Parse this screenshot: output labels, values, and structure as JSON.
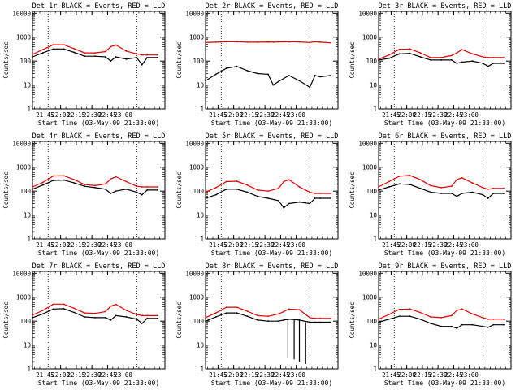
{
  "figure": {
    "colors": {
      "events": "#000000",
      "lld": "#e00000",
      "axes": "#000000",
      "background": "#ffffff"
    }
  },
  "chart_data": [
    {
      "type": "line",
      "title": "Det 1r BLACK = Events, RED = LLD",
      "xlabel": "Start Time (03-May-09 21:33:00)",
      "ylabel": "Counts/sec",
      "x_ticks": [
        "21:45",
        "22:00",
        "22:15",
        "22:30",
        "22:45",
        "23:00"
      ],
      "y_ticks": [
        "1",
        "10",
        "100",
        "1000",
        "10000"
      ],
      "ylim": [
        1,
        12000
      ],
      "yscale": "log",
      "grid": "none",
      "vlines_min": [
        15,
        100
      ],
      "x_min": [
        0,
        10,
        20,
        30,
        40,
        50,
        60,
        70,
        75,
        80,
        90,
        100,
        105,
        110,
        120
      ],
      "series": [
        {
          "name": "Events",
          "color": "#000000",
          "values": [
            150,
            220,
            320,
            320,
            230,
            160,
            160,
            150,
            100,
            150,
            120,
            140,
            70,
            140,
            140
          ]
        },
        {
          "name": "LLD",
          "color": "#e00000",
          "values": [
            190,
            300,
            480,
            480,
            330,
            220,
            220,
            250,
            400,
            470,
            260,
            200,
            180,
            180,
            180
          ]
        }
      ]
    },
    {
      "type": "line",
      "title": "Det 2r BLACK = Events, RED = LLD",
      "xlabel": "Start Time (03-May-09 21:33:00)",
      "ylabel": "Counts/sec",
      "x_ticks": [
        "21:45",
        "22:00",
        "22:15",
        "22:30",
        "22:45",
        "23:00"
      ],
      "y_ticks": [
        "1",
        "10",
        "100",
        "1000",
        "10000"
      ],
      "ylim": [
        1,
        12000
      ],
      "yscale": "log",
      "grid": "none",
      "vlines_min": [
        15,
        100
      ],
      "x_min": [
        0,
        10,
        20,
        30,
        40,
        50,
        60,
        65,
        70,
        80,
        90,
        100,
        105,
        110,
        120
      ],
      "series": [
        {
          "name": "Events",
          "color": "#000000",
          "values": [
            15,
            28,
            50,
            60,
            40,
            30,
            28,
            10,
            14,
            25,
            15,
            8,
            25,
            22,
            25
          ]
        },
        {
          "name": "LLD",
          "color": "#e00000",
          "values": [
            600,
            620,
            640,
            640,
            620,
            620,
            630,
            620,
            630,
            640,
            630,
            600,
            640,
            620,
            580
          ]
        }
      ]
    },
    {
      "type": "line",
      "title": "Det 3r BLACK = Events, RED = LLD",
      "xlabel": "Start Time (03-May-09 21:33:00)",
      "ylabel": "Counts/sec",
      "x_ticks": [
        "21:45",
        "22:00",
        "22:15",
        "22:30",
        "22:45",
        "23:00"
      ],
      "y_ticks": [
        "1",
        "10",
        "100",
        "1000",
        "10000"
      ],
      "ylim": [
        1,
        12000
      ],
      "yscale": "log",
      "grid": "none",
      "vlines_min": [
        15,
        100
      ],
      "x_min": [
        0,
        10,
        20,
        30,
        40,
        50,
        60,
        70,
        75,
        80,
        90,
        100,
        105,
        110,
        120
      ],
      "series": [
        {
          "name": "Events",
          "color": "#000000",
          "values": [
            110,
            130,
            200,
            210,
            150,
            110,
            110,
            110,
            80,
            90,
            100,
            80,
            60,
            80,
            80
          ]
        },
        {
          "name": "LLD",
          "color": "#e00000",
          "values": [
            120,
            180,
            310,
            320,
            220,
            140,
            140,
            170,
            220,
            300,
            200,
            150,
            140,
            140,
            140
          ]
        }
      ]
    },
    {
      "type": "line",
      "title": "Det 4r BLACK = Events, RED = LLD",
      "xlabel": "Start Time (03-May-09 21:33:00)",
      "ylabel": "Counts/sec",
      "x_ticks": [
        "21:45",
        "22:00",
        "22:15",
        "22:30",
        "22:45",
        "23:00"
      ],
      "y_ticks": [
        "1",
        "10",
        "100",
        "1000",
        "10000"
      ],
      "ylim": [
        1,
        12000
      ],
      "yscale": "log",
      "grid": "none",
      "vlines_min": [
        15,
        100
      ],
      "x_min": [
        0,
        10,
        20,
        30,
        40,
        50,
        60,
        70,
        75,
        80,
        90,
        100,
        105,
        110,
        120
      ],
      "series": [
        {
          "name": "Events",
          "color": "#000000",
          "values": [
            120,
            180,
            280,
            290,
            220,
            160,
            140,
            120,
            80,
            100,
            120,
            90,
            70,
            110,
            110
          ]
        },
        {
          "name": "LLD",
          "color": "#e00000",
          "values": [
            150,
            230,
            430,
            440,
            300,
            190,
            170,
            200,
            320,
            400,
            250,
            160,
            150,
            150,
            150
          ]
        }
      ]
    },
    {
      "type": "line",
      "title": "Det 5r BLACK = Events, RED = LLD",
      "xlabel": "Start Time (03-May-09 21:33:00)",
      "ylabel": "Counts/sec",
      "x_ticks": [
        "21:45",
        "22:00",
        "22:15",
        "22:30",
        "22:45",
        "23:00"
      ],
      "y_ticks": [
        "1",
        "10",
        "100",
        "1000",
        "10000"
      ],
      "ylim": [
        1,
        12000
      ],
      "yscale": "log",
      "grid": "none",
      "vlines_min": [
        15,
        100
      ],
      "x_min": [
        0,
        10,
        20,
        30,
        40,
        50,
        60,
        70,
        75,
        80,
        90,
        100,
        105,
        110,
        120
      ],
      "series": [
        {
          "name": "Events",
          "color": "#000000",
          "values": [
            50,
            70,
            120,
            120,
            90,
            60,
            50,
            40,
            20,
            30,
            35,
            30,
            50,
            50,
            50
          ]
        },
        {
          "name": "LLD",
          "color": "#e00000",
          "values": [
            90,
            140,
            250,
            260,
            180,
            110,
            100,
            130,
            250,
            300,
            150,
            90,
            80,
            80,
            80
          ]
        }
      ]
    },
    {
      "type": "line",
      "title": "Det 6r BLACK = Events, RED = LLD",
      "xlabel": "Start Time (03-May-09 21:33:00)",
      "ylabel": "Counts/sec",
      "x_ticks": [
        "21:45",
        "22:00",
        "22:15",
        "22:30",
        "22:45",
        "23:00"
      ],
      "y_ticks": [
        "1",
        "10",
        "100",
        "1000",
        "10000"
      ],
      "ylim": [
        1,
        12000
      ],
      "yscale": "log",
      "grid": "none",
      "vlines_min": [
        15,
        100
      ],
      "x_min": [
        0,
        10,
        20,
        30,
        40,
        50,
        60,
        70,
        75,
        80,
        90,
        100,
        105,
        110,
        120
      ],
      "series": [
        {
          "name": "Events",
          "color": "#000000",
          "values": [
            110,
            150,
            200,
            190,
            130,
            90,
            80,
            80,
            60,
            80,
            90,
            70,
            50,
            80,
            80
          ]
        },
        {
          "name": "LLD",
          "color": "#e00000",
          "values": [
            150,
            250,
            420,
            450,
            300,
            170,
            140,
            160,
            300,
            360,
            220,
            140,
            120,
            130,
            130
          ]
        }
      ]
    },
    {
      "type": "line",
      "title": "Det 7r BLACK = Events, RED = LLD",
      "xlabel": "Start Time (03-May-09 21:33:00)",
      "ylabel": "Counts/sec",
      "x_ticks": [
        "21:45",
        "22:00",
        "22:15",
        "22:30",
        "22:45",
        "23:00"
      ],
      "y_ticks": [
        "1",
        "10",
        "100",
        "1000",
        "10000"
      ],
      "ylim": [
        1,
        12000
      ],
      "yscale": "log",
      "grid": "none",
      "vlines_min": [
        15,
        100
      ],
      "x_min": [
        0,
        10,
        20,
        30,
        40,
        50,
        60,
        70,
        75,
        80,
        90,
        100,
        105,
        110,
        120
      ],
      "series": [
        {
          "name": "Events",
          "color": "#000000",
          "values": [
            140,
            200,
            320,
            330,
            230,
            150,
            140,
            140,
            110,
            170,
            150,
            120,
            80,
            130,
            130
          ]
        },
        {
          "name": "LLD",
          "color": "#e00000",
          "values": [
            180,
            280,
            510,
            510,
            340,
            220,
            210,
            250,
            420,
            500,
            280,
            190,
            170,
            170,
            170
          ]
        }
      ]
    },
    {
      "type": "line",
      "title": "Det 8r BLACK = Events, RED = LLD",
      "xlabel": "Start Time (03-May-09 21:33:00)",
      "ylabel": "Counts/sec",
      "x_ticks": [
        "21:45",
        "22:00",
        "22:15",
        "22:30",
        "22:45",
        "23:00"
      ],
      "y_ticks": [
        "1",
        "10",
        "100",
        "1000",
        "10000"
      ],
      "ylim": [
        1,
        12000
      ],
      "yscale": "log",
      "grid": "none",
      "vlines_min": [
        15,
        100
      ],
      "x_min": [
        0,
        10,
        20,
        30,
        40,
        50,
        60,
        70,
        75,
        80,
        90,
        100,
        105,
        110,
        120
      ],
      "series": [
        {
          "name": "Events",
          "color": "#000000",
          "values": [
            100,
            150,
            220,
            220,
            160,
            110,
            100,
            100,
            110,
            120,
            110,
            90,
            90,
            90,
            90
          ]
        },
        {
          "name": "LLD",
          "color": "#e00000",
          "values": [
            140,
            220,
            380,
            380,
            260,
            170,
            160,
            200,
            250,
            320,
            300,
            140,
            130,
            130,
            130
          ]
        }
      ],
      "dropouts": [
        {
          "x": 79,
          "y": 3
        },
        {
          "x": 85,
          "y": 2.5
        },
        {
          "x": 90,
          "y": 2
        },
        {
          "x": 96,
          "y": 1.6
        }
      ]
    },
    {
      "type": "line",
      "title": "Det 9r BLACK = Events, RED = LLD",
      "xlabel": "Start Time (03-May-09 21:33:00)",
      "ylabel": "Counts/sec",
      "x_ticks": [
        "21:45",
        "22:00",
        "22:15",
        "22:30",
        "22:45",
        "23:00"
      ],
      "y_ticks": [
        "1",
        "10",
        "100",
        "1000",
        "10000"
      ],
      "ylim": [
        1,
        12000
      ],
      "yscale": "log",
      "grid": "none",
      "vlines_min": [
        15,
        100
      ],
      "x_min": [
        0,
        10,
        20,
        30,
        40,
        50,
        60,
        70,
        75,
        80,
        90,
        100,
        105,
        110,
        120
      ],
      "series": [
        {
          "name": "Events",
          "color": "#000000",
          "values": [
            90,
            120,
            160,
            160,
            120,
            80,
            60,
            60,
            50,
            70,
            70,
            60,
            55,
            70,
            70
          ]
        },
        {
          "name": "LLD",
          "color": "#e00000",
          "values": [
            120,
            190,
            310,
            320,
            230,
            150,
            140,
            170,
            280,
            320,
            200,
            140,
            120,
            120,
            120
          ]
        }
      ]
    }
  ]
}
